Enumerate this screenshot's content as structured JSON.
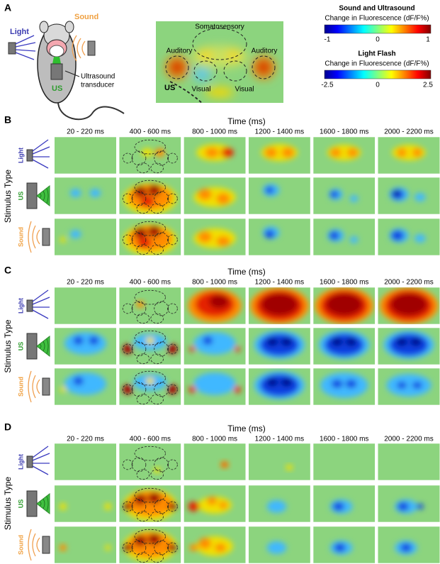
{
  "panel_a": {
    "label": "A",
    "mouse": {
      "light": "Light",
      "sound": "Sound",
      "us": "US",
      "transducer": [
        "Ultrasound",
        "transducer"
      ]
    },
    "brain": {
      "regions": [
        "Somatosensory",
        "Auditory",
        "Auditory",
        "Visual",
        "Visual"
      ],
      "us": "US"
    },
    "colorbars": [
      {
        "title": "Sound and Ultrasound",
        "subtitle": "Change in Fluorescence (dF/F%)",
        "ticks": [
          "-1",
          "0",
          "1"
        ]
      },
      {
        "title": "Light Flash",
        "subtitle": "Change in Fluorescence (dF/F%)",
        "ticks": [
          "-2.5",
          "0",
          "2.5"
        ]
      }
    ]
  },
  "panels": [
    {
      "label": "B",
      "time_axis": "Time (ms)",
      "times": [
        "20 - 220 ms",
        "400 - 600 ms",
        "800 - 1000 ms",
        "1200 - 1400 ms",
        "1600 - 1800 ms",
        "2000 - 2200 ms"
      ],
      "y_axis": "Stimulus Type",
      "rows": [
        "Light",
        "US",
        "Sound"
      ]
    },
    {
      "label": "C",
      "time_axis": "Time (ms)",
      "times": [
        "20 - 220 ms",
        "400 - 600 ms",
        "800 - 1000 ms",
        "1200 - 1400 ms",
        "1600 - 1800 ms",
        "2000 - 2200 ms"
      ],
      "y_axis": "Stimulus Type",
      "rows": [
        "Light",
        "US",
        "Sound"
      ]
    },
    {
      "label": "D",
      "time_axis": "Time (ms)",
      "times": [
        "20 - 220 ms",
        "400 - 600 ms",
        "800 - 1000 ms",
        "1200 - 1400 ms",
        "1600 - 1800 ms",
        "2000 - 2200 ms"
      ],
      "y_axis": "Stimulus Type",
      "rows": [
        "Light",
        "US",
        "Sound"
      ]
    }
  ]
}
